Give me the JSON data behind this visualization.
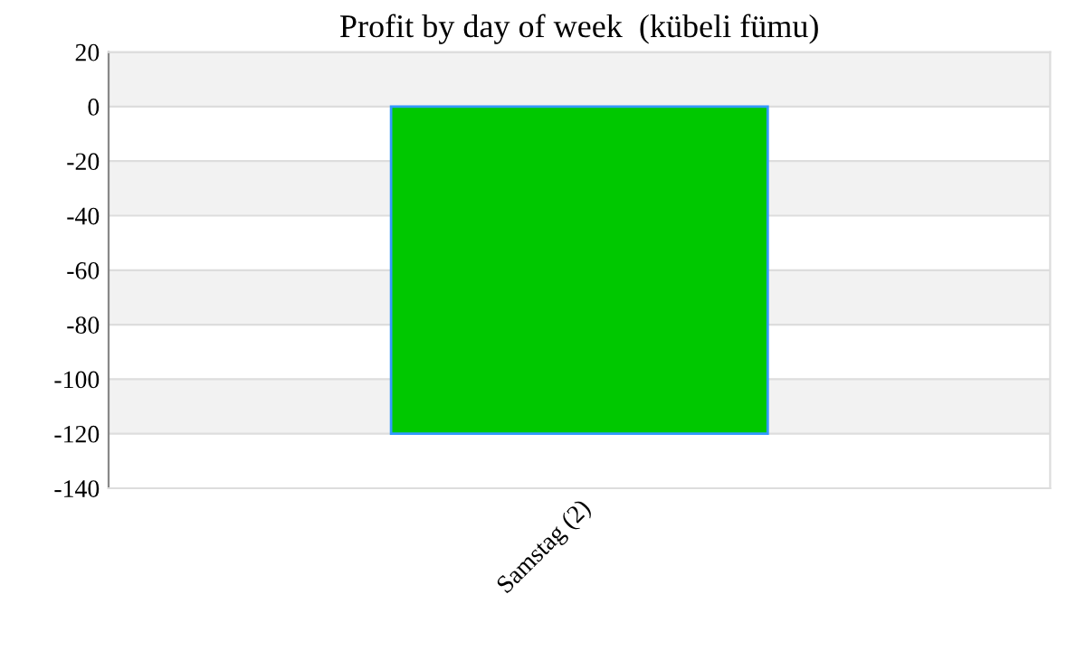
{
  "chart_data": {
    "type": "bar",
    "title": "Profit by day of week  (kübeli fümu)",
    "categories": [
      "Samstag (2)"
    ],
    "series": [
      {
        "color": "#00c800",
        "values": [
          -120
        ]
      }
    ],
    "ylim": [
      -140,
      20
    ],
    "yticks": [
      -140,
      -120,
      -100,
      -80,
      -60,
      -40,
      -20,
      0,
      20
    ],
    "grid": "y"
  }
}
